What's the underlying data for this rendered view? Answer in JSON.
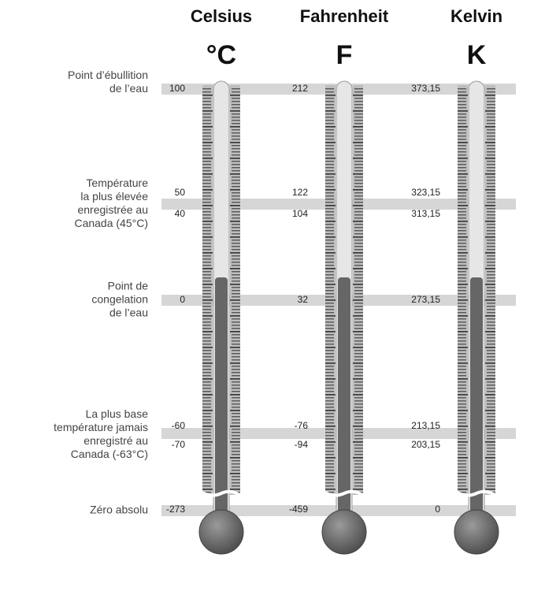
{
  "scales": [
    {
      "name": "Celsius",
      "symbol": "°C",
      "readings": [
        "100",
        "50",
        "40",
        "0",
        "-60",
        "-70",
        "-273"
      ]
    },
    {
      "name": "Fahrenheit",
      "symbol": "F",
      "readings": [
        "212",
        "122",
        "104",
        "32",
        "-76",
        "-94",
        "-459"
      ]
    },
    {
      "name": "Kelvin",
      "symbol": "K",
      "readings": [
        "373,15",
        "323,15",
        "313,15",
        "273,15",
        "213,15",
        "203,15",
        "0"
      ]
    }
  ],
  "reference_points": [
    {
      "lines": [
        "Point d’ébullition",
        "de l’eau"
      ]
    },
    {
      "lines": [
        "Température",
        "la plus élevée",
        "enregistrée au",
        "Canada (45°C)"
      ]
    },
    {
      "lines": [
        "Point de",
        "congelation",
        "de l’eau"
      ]
    },
    {
      "lines": [
        "La plus base",
        "température jamais",
        "enregistré au",
        "Canada (-63°C)"
      ]
    },
    {
      "lines": [
        "Zéro absolu"
      ]
    }
  ]
}
